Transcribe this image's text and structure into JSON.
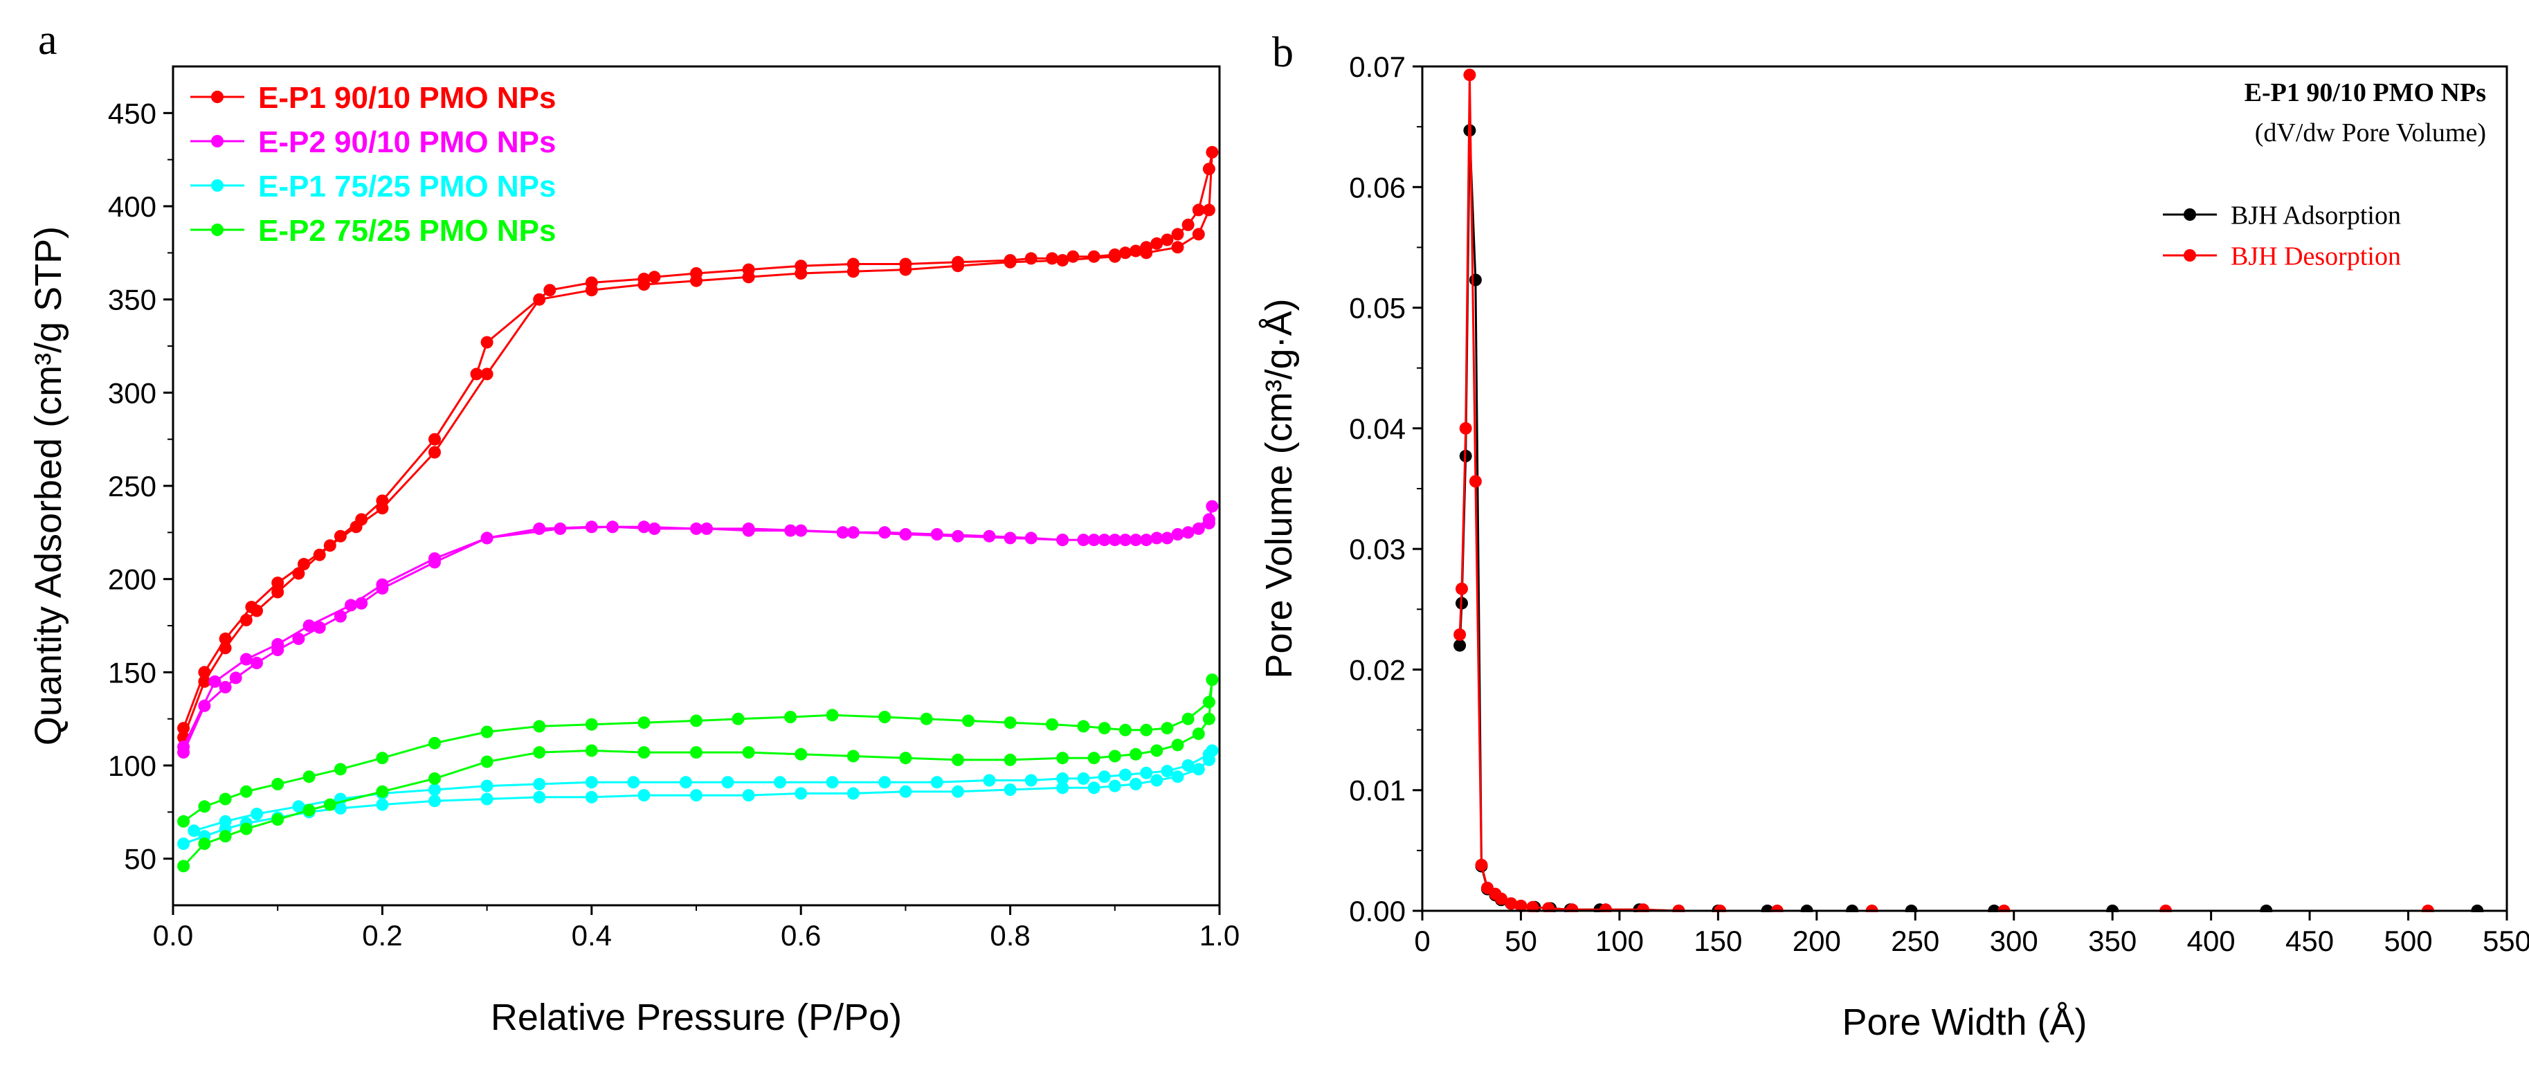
{
  "panels": {
    "a": "a",
    "b": "b"
  },
  "chart_data": [
    {
      "id": "a",
      "type": "line",
      "xlabel": "Relative Pressure (P/Po)",
      "ylabel": "Quantity Adsorbed (cm³/g STP)",
      "xlim": [
        0,
        1.0
      ],
      "ylim": [
        25,
        475
      ],
      "xticks": [
        0.0,
        0.2,
        0.4,
        0.6,
        0.8,
        1.0
      ],
      "xtick_labels": [
        "0.0",
        "0.2",
        "0.4",
        "0.6",
        "0.8",
        "1.0"
      ],
      "yticks": [
        50,
        100,
        150,
        200,
        250,
        300,
        350,
        400,
        450
      ],
      "ytick_labels": [
        "50",
        "100",
        "150",
        "200",
        "250",
        "300",
        "350",
        "400",
        "450"
      ],
      "legend_position": "top-left",
      "series": [
        {
          "name": "E-P1 90/10 PMO NPs",
          "color": "#ff0000",
          "x": [
            0.01,
            0.03,
            0.05,
            0.075,
            0.1,
            0.125,
            0.15,
            0.175,
            0.2,
            0.25,
            0.3,
            0.35,
            0.4,
            0.45,
            0.5,
            0.55,
            0.6,
            0.65,
            0.7,
            0.75,
            0.8,
            0.85,
            0.9,
            0.93,
            0.96,
            0.98,
            0.99,
            0.993,
            0.99,
            0.98,
            0.97,
            0.96,
            0.95,
            0.94,
            0.93,
            0.92,
            0.91,
            0.9,
            0.88,
            0.86,
            0.84,
            0.82,
            0.8,
            0.75,
            0.7,
            0.65,
            0.6,
            0.55,
            0.5,
            0.46,
            0.45,
            0.4,
            0.36,
            0.3,
            0.29,
            0.25,
            0.2,
            0.18,
            0.16,
            0.14,
            0.12,
            0.1,
            0.08,
            0.07,
            0.05,
            0.03,
            0.01
          ],
          "y": [
            120,
            150,
            168,
            185,
            198,
            208,
            218,
            228,
            238,
            268,
            310,
            350,
            355,
            358,
            360,
            362,
            364,
            365,
            366,
            368,
            370,
            371,
            373,
            375,
            378,
            385,
            398,
            429,
            420,
            398,
            390,
            385,
            382,
            380,
            378,
            376,
            375,
            374,
            373,
            373,
            372,
            372,
            371,
            370,
            369,
            369,
            368,
            366,
            364,
            362,
            361,
            359,
            355,
            327,
            310,
            275,
            242,
            232,
            223,
            213,
            203,
            193,
            183,
            178,
            163,
            145,
            115
          ]
        },
        {
          "name": "E-P2 90/10 PMO NPs",
          "color": "#ff00ff",
          "x": [
            0.01,
            0.03,
            0.05,
            0.06,
            0.08,
            0.1,
            0.12,
            0.14,
            0.16,
            0.18,
            0.2,
            0.25,
            0.3,
            0.35,
            0.4,
            0.45,
            0.5,
            0.55,
            0.6,
            0.65,
            0.7,
            0.75,
            0.8,
            0.85,
            0.88,
            0.9,
            0.92,
            0.94,
            0.96,
            0.98,
            0.99,
            0.993,
            0.99,
            0.97,
            0.95,
            0.93,
            0.91,
            0.89,
            0.87,
            0.85,
            0.82,
            0.78,
            0.73,
            0.68,
            0.64,
            0.59,
            0.55,
            0.51,
            0.46,
            0.42,
            0.37,
            0.3,
            0.25,
            0.2,
            0.17,
            0.13,
            0.1,
            0.07,
            0.04,
            0.01
          ],
          "y": [
            107,
            132,
            142,
            147,
            155,
            162,
            168,
            174,
            180,
            187,
            195,
            209,
            222,
            227,
            228,
            228,
            227,
            227,
            226,
            225,
            224,
            223,
            222,
            221,
            221,
            221,
            221,
            222,
            224,
            227,
            230,
            239,
            232,
            225,
            222,
            221,
            221,
            221,
            221,
            221,
            222,
            223,
            224,
            225,
            225,
            226,
            226,
            227,
            227,
            228,
            227,
            222,
            211,
            197,
            186,
            175,
            165,
            157,
            145,
            110
          ]
        },
        {
          "name": "E-P1 75/25 PMO NPs",
          "color": "#00ffff",
          "x": [
            0.01,
            0.03,
            0.05,
            0.07,
            0.1,
            0.13,
            0.16,
            0.2,
            0.25,
            0.3,
            0.35,
            0.4,
            0.45,
            0.5,
            0.55,
            0.6,
            0.65,
            0.7,
            0.75,
            0.8,
            0.85,
            0.88,
            0.9,
            0.92,
            0.94,
            0.96,
            0.98,
            0.99,
            0.993,
            0.99,
            0.97,
            0.95,
            0.93,
            0.91,
            0.89,
            0.87,
            0.85,
            0.82,
            0.78,
            0.73,
            0.68,
            0.63,
            0.58,
            0.53,
            0.49,
            0.44,
            0.4,
            0.35,
            0.3,
            0.25,
            0.2,
            0.16,
            0.12,
            0.08,
            0.05,
            0.02
          ],
          "y": [
            58,
            62,
            66,
            69,
            72,
            75,
            77,
            79,
            81,
            82,
            83,
            83,
            84,
            84,
            84,
            85,
            85,
            86,
            86,
            87,
            88,
            88,
            89,
            90,
            92,
            94,
            98,
            103,
            108,
            106,
            100,
            97,
            96,
            95,
            94,
            93,
            93,
            92,
            92,
            91,
            91,
            91,
            91,
            91,
            91,
            91,
            91,
            90,
            89,
            87,
            85,
            82,
            78,
            74,
            70,
            65
          ]
        },
        {
          "name": "E-P2 75/25 PMO NPs",
          "color": "#00ff00",
          "x": [
            0.01,
            0.03,
            0.05,
            0.07,
            0.1,
            0.13,
            0.15,
            0.2,
            0.25,
            0.3,
            0.35,
            0.4,
            0.45,
            0.5,
            0.55,
            0.6,
            0.65,
            0.7,
            0.75,
            0.8,
            0.85,
            0.88,
            0.9,
            0.92,
            0.94,
            0.96,
            0.98,
            0.99,
            0.993,
            0.99,
            0.97,
            0.95,
            0.93,
            0.91,
            0.89,
            0.87,
            0.84,
            0.8,
            0.76,
            0.72,
            0.68,
            0.63,
            0.59,
            0.54,
            0.5,
            0.45,
            0.4,
            0.35,
            0.3,
            0.25,
            0.2,
            0.16,
            0.13,
            0.1,
            0.07,
            0.05,
            0.03,
            0.01
          ],
          "y": [
            46,
            58,
            62,
            66,
            71,
            76,
            79,
            86,
            93,
            102,
            107,
            108,
            107,
            107,
            107,
            106,
            105,
            104,
            103,
            103,
            104,
            104,
            105,
            106,
            108,
            111,
            117,
            125,
            146,
            134,
            125,
            120,
            119,
            119,
            120,
            121,
            122,
            123,
            124,
            125,
            126,
            127,
            126,
            125,
            124,
            123,
            122,
            121,
            118,
            112,
            104,
            98,
            94,
            90,
            86,
            82,
            78,
            70
          ]
        }
      ]
    },
    {
      "id": "b",
      "type": "line",
      "xlabel": "Pore Width (Å)",
      "ylabel": "Pore Volume (cm³/g·Å)",
      "xlim": [
        0,
        550
      ],
      "ylim": [
        0,
        0.07
      ],
      "xticks": [
        0,
        50,
        100,
        150,
        200,
        250,
        300,
        350,
        400,
        450,
        500,
        550
      ],
      "xtick_labels": [
        "0",
        "50",
        "100",
        "150",
        "200",
        "250",
        "300",
        "350",
        "400",
        "450",
        "500",
        "550"
      ],
      "yticks": [
        0,
        0.01,
        0.02,
        0.03,
        0.04,
        0.05,
        0.06,
        0.07
      ],
      "ytick_labels": [
        "0.00",
        "0.01",
        "0.02",
        "0.03",
        "0.04",
        "0.05",
        "0.06",
        "0.07"
      ],
      "annotation": {
        "title": "E-P1 90/10 PMO NPs",
        "subtitle": "(dV/dw Pore Volume)"
      },
      "legend_position": "top-right",
      "series": [
        {
          "name": "BJH Adsorption",
          "color": "#000000",
          "x": [
            19,
            20,
            22,
            24,
            27,
            30,
            33,
            37,
            40,
            45,
            50,
            57,
            65,
            75,
            90,
            110,
            130,
            150,
            175,
            195,
            218,
            248,
            290,
            350,
            428,
            535
          ],
          "y": [
            0.022,
            0.0255,
            0.0377,
            0.0647,
            0.0523,
            0.0037,
            0.0018,
            0.0013,
            0.0009,
            0.0006,
            0.0004,
            0.0003,
            0.0002,
            0.0001,
            0.0001,
            0.0001,
            0.0,
            0.0,
            0.0,
            0.0,
            0.0,
            0.0,
            0.0,
            0.0,
            0.0,
            0.0
          ]
        },
        {
          "name": "BJH Desorption",
          "color": "#ff0000",
          "x": [
            19,
            20,
            22,
            24,
            27,
            30,
            33,
            37,
            40,
            45,
            50,
            56,
            64,
            76,
            93,
            112,
            130,
            151,
            180,
            228,
            295,
            377,
            510
          ],
          "y": [
            0.0229,
            0.0267,
            0.04,
            0.0693,
            0.0356,
            0.0038,
            0.0019,
            0.0014,
            0.001,
            0.0006,
            0.0004,
            0.0003,
            0.0002,
            0.0001,
            0.0001,
            0.0001,
            0.0,
            0.0,
            0.0,
            0.0,
            0.0,
            0.0,
            0.0
          ]
        }
      ]
    }
  ]
}
